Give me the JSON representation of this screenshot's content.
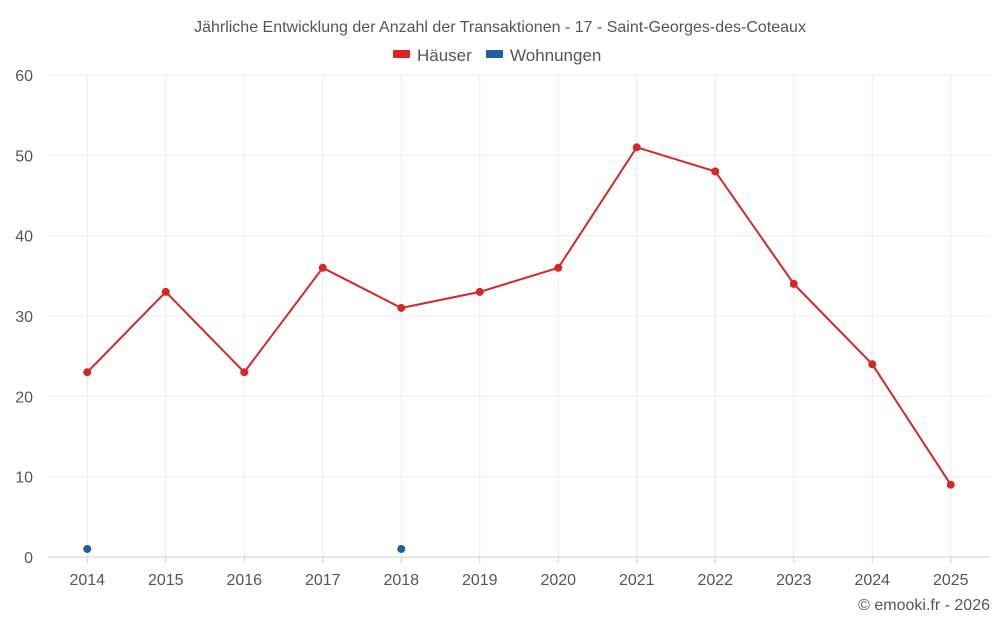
{
  "chart_data": {
    "type": "line",
    "title": "Jährliche Entwicklung der Anzahl der Transaktionen - 17 - Saint-Georges-des-Coteaux",
    "categories": [
      "2014",
      "2015",
      "2016",
      "2017",
      "2018",
      "2019",
      "2020",
      "2021",
      "2022",
      "2023",
      "2024",
      "2025"
    ],
    "series": [
      {
        "name": "Häuser",
        "color": "#d62728",
        "values": [
          23,
          33,
          23,
          36,
          31,
          33,
          36,
          51,
          48,
          34,
          24,
          9
        ]
      },
      {
        "name": "Wohnungen",
        "color": "#1f5f9f",
        "values": [
          1,
          null,
          null,
          null,
          1,
          null,
          null,
          null,
          null,
          null,
          null,
          null
        ]
      }
    ],
    "ylim": [
      0,
      60
    ],
    "yticks": [
      0,
      10,
      20,
      30,
      40,
      50,
      60
    ],
    "xlabel": "",
    "ylabel": "",
    "grid": true,
    "legend_position": "top-center"
  },
  "credit": "© emooki.fr - 2026"
}
